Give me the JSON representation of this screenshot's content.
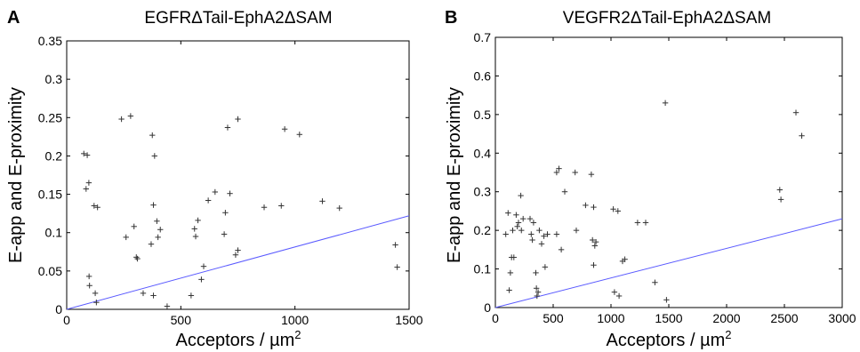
{
  "chart_data": [
    {
      "type": "scatter",
      "panel": "A",
      "title": "EGFRΔTail-EphA2ΔSAM",
      "xlabel": "Acceptors / µm",
      "xlabel_sup": "2",
      "ylabel": "E-app and E-proximity",
      "xlim": [
        0,
        1500
      ],
      "ylim": [
        0,
        0.35
      ],
      "xticks": [
        "0",
        "500",
        "1000",
        "1500"
      ],
      "yticks": [
        "0",
        "0.05",
        "0.1",
        "0.15",
        "0.2",
        "0.25",
        "0.3",
        "0.35"
      ],
      "marker_color": "#333333",
      "line_color": "#5a5aff",
      "fit_line": {
        "x": [
          0,
          1500
        ],
        "y": [
          0,
          0.122
        ]
      },
      "points": [
        {
          "x": 75,
          "y": 0.203
        },
        {
          "x": 85,
          "y": 0.157
        },
        {
          "x": 90,
          "y": 0.201
        },
        {
          "x": 97,
          "y": 0.165
        },
        {
          "x": 98,
          "y": 0.043
        },
        {
          "x": 100,
          "y": 0.031
        },
        {
          "x": 120,
          "y": 0.135
        },
        {
          "x": 125,
          "y": 0.021
        },
        {
          "x": 130,
          "y": 0.009
        },
        {
          "x": 135,
          "y": 0.133
        },
        {
          "x": 240,
          "y": 0.248
        },
        {
          "x": 260,
          "y": 0.094
        },
        {
          "x": 280,
          "y": 0.252
        },
        {
          "x": 295,
          "y": 0.108
        },
        {
          "x": 305,
          "y": 0.068
        },
        {
          "x": 310,
          "y": 0.066
        },
        {
          "x": 335,
          "y": 0.021
        },
        {
          "x": 370,
          "y": 0.085
        },
        {
          "x": 375,
          "y": 0.227
        },
        {
          "x": 385,
          "y": 0.2
        },
        {
          "x": 380,
          "y": 0.136
        },
        {
          "x": 380,
          "y": 0.018
        },
        {
          "x": 395,
          "y": 0.115
        },
        {
          "x": 400,
          "y": 0.094
        },
        {
          "x": 410,
          "y": 0.104
        },
        {
          "x": 440,
          "y": 0.004
        },
        {
          "x": 545,
          "y": 0.018
        },
        {
          "x": 560,
          "y": 0.105
        },
        {
          "x": 565,
          "y": 0.095
        },
        {
          "x": 575,
          "y": 0.116
        },
        {
          "x": 590,
          "y": 0.039
        },
        {
          "x": 600,
          "y": 0.056
        },
        {
          "x": 620,
          "y": 0.142
        },
        {
          "x": 650,
          "y": 0.153
        },
        {
          "x": 690,
          "y": 0.098
        },
        {
          "x": 695,
          "y": 0.126
        },
        {
          "x": 705,
          "y": 0.237
        },
        {
          "x": 715,
          "y": 0.151
        },
        {
          "x": 740,
          "y": 0.071
        },
        {
          "x": 750,
          "y": 0.248
        },
        {
          "x": 750,
          "y": 0.077
        },
        {
          "x": 865,
          "y": 0.133
        },
        {
          "x": 940,
          "y": 0.135
        },
        {
          "x": 955,
          "y": 0.235
        },
        {
          "x": 1020,
          "y": 0.228
        },
        {
          "x": 1120,
          "y": 0.141
        },
        {
          "x": 1195,
          "y": 0.132
        },
        {
          "x": 1440,
          "y": 0.084
        },
        {
          "x": 1448,
          "y": 0.055
        }
      ]
    },
    {
      "type": "scatter",
      "panel": "B",
      "title": "VEGFR2ΔTail-EphA2ΔSAM",
      "xlabel": "Acceptors / µm",
      "xlabel_sup": "2",
      "ylabel": "E-app and E-proximity",
      "xlim": [
        0,
        3000
      ],
      "ylim": [
        0,
        0.7
      ],
      "xticks": [
        "0",
        "500",
        "1000",
        "1500",
        "2000",
        "2500",
        "3000"
      ],
      "yticks": [
        "0",
        "0.1",
        "0.2",
        "0.3",
        "0.4",
        "0.5",
        "0.6",
        "0.7"
      ],
      "marker_color": "#333333",
      "line_color": "#5a5aff",
      "fit_line": {
        "x": [
          0,
          3000
        ],
        "y": [
          0,
          0.23
        ]
      },
      "points": [
        {
          "x": 90,
          "y": 0.19
        },
        {
          "x": 110,
          "y": 0.245
        },
        {
          "x": 120,
          "y": 0.045
        },
        {
          "x": 130,
          "y": 0.09
        },
        {
          "x": 140,
          "y": 0.13
        },
        {
          "x": 150,
          "y": 0.2
        },
        {
          "x": 160,
          "y": 0.13
        },
        {
          "x": 180,
          "y": 0.24
        },
        {
          "x": 190,
          "y": 0.21
        },
        {
          "x": 200,
          "y": 0.22
        },
        {
          "x": 220,
          "y": 0.29
        },
        {
          "x": 225,
          "y": 0.2
        },
        {
          "x": 240,
          "y": 0.23
        },
        {
          "x": 300,
          "y": 0.23
        },
        {
          "x": 310,
          "y": 0.19
        },
        {
          "x": 320,
          "y": 0.175
        },
        {
          "x": 330,
          "y": 0.22
        },
        {
          "x": 350,
          "y": 0.09
        },
        {
          "x": 355,
          "y": 0.05
        },
        {
          "x": 360,
          "y": 0.03
        },
        {
          "x": 370,
          "y": 0.04
        },
        {
          "x": 380,
          "y": 0.2
        },
        {
          "x": 400,
          "y": 0.165
        },
        {
          "x": 420,
          "y": 0.185
        },
        {
          "x": 430,
          "y": 0.105
        },
        {
          "x": 450,
          "y": 0.19
        },
        {
          "x": 530,
          "y": 0.19
        },
        {
          "x": 530,
          "y": 0.35
        },
        {
          "x": 550,
          "y": 0.36
        },
        {
          "x": 570,
          "y": 0.15
        },
        {
          "x": 600,
          "y": 0.3
        },
        {
          "x": 690,
          "y": 0.35
        },
        {
          "x": 700,
          "y": 0.2
        },
        {
          "x": 780,
          "y": 0.265
        },
        {
          "x": 830,
          "y": 0.345
        },
        {
          "x": 840,
          "y": 0.175
        },
        {
          "x": 850,
          "y": 0.11
        },
        {
          "x": 850,
          "y": 0.26
        },
        {
          "x": 860,
          "y": 0.16
        },
        {
          "x": 870,
          "y": 0.17
        },
        {
          "x": 1020,
          "y": 0.255
        },
        {
          "x": 1030,
          "y": 0.04
        },
        {
          "x": 1060,
          "y": 0.25
        },
        {
          "x": 1070,
          "y": 0.03
        },
        {
          "x": 1100,
          "y": 0.12
        },
        {
          "x": 1120,
          "y": 0.125
        },
        {
          "x": 1230,
          "y": 0.22
        },
        {
          "x": 1300,
          "y": 0.22
        },
        {
          "x": 1380,
          "y": 0.065
        },
        {
          "x": 1470,
          "y": 0.53
        },
        {
          "x": 1480,
          "y": 0.02
        },
        {
          "x": 2460,
          "y": 0.305
        },
        {
          "x": 2470,
          "y": 0.28
        },
        {
          "x": 2600,
          "y": 0.505
        },
        {
          "x": 2650,
          "y": 0.445
        }
      ]
    }
  ]
}
